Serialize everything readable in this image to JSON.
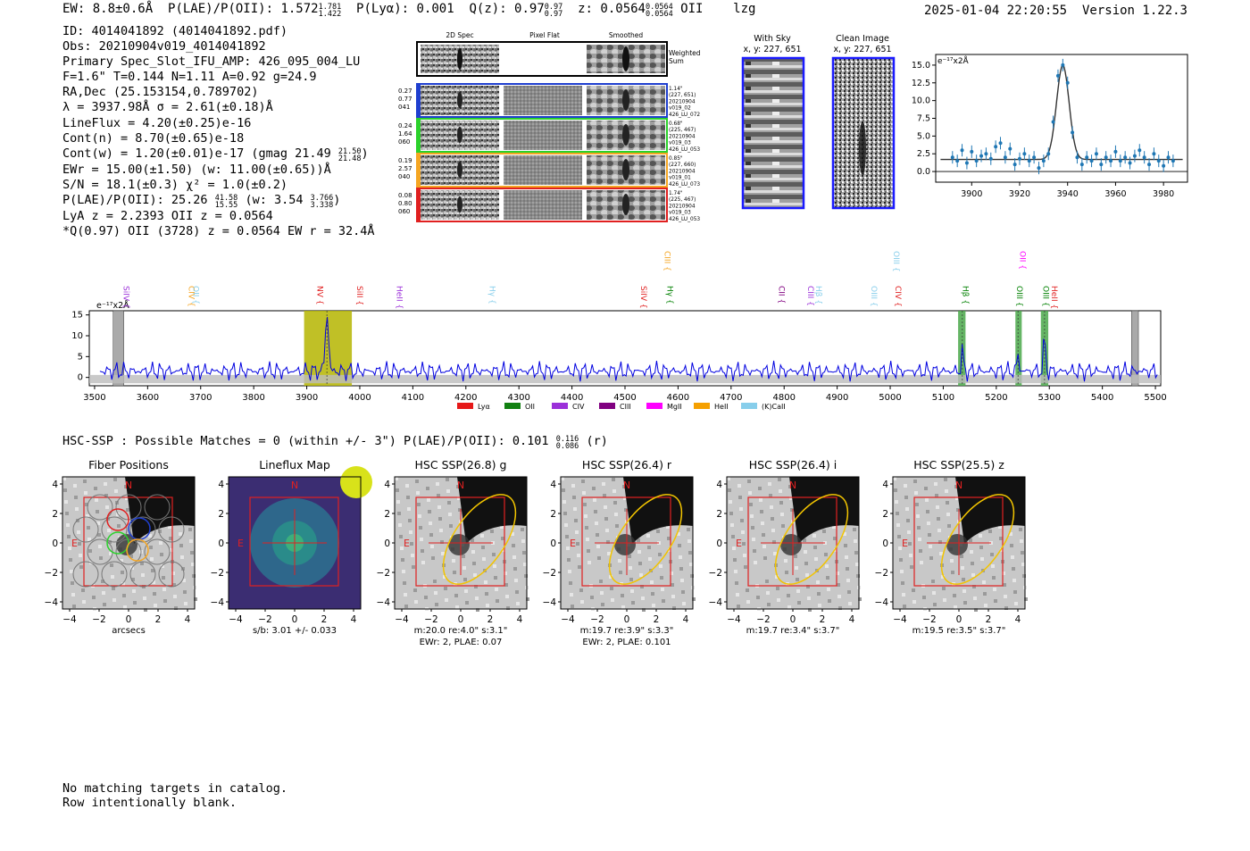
{
  "header": {
    "ew": "EW: 8.8±0.6Å",
    "plae_label": "P(LAE)/P(OII): 1.572",
    "plae_hi": "1.781",
    "plae_lo": "1.422",
    "plya": "P(Lyα): 0.001",
    "qz_label": "Q(z): 0.97",
    "qz_hi": "0.97",
    "qz_lo": "0.97",
    "z_label": "z: 0.0564",
    "z_hi": "0.0564",
    "z_lo": "0.0564",
    "z_line": "OII",
    "tag": "lzg",
    "timestamp": "2025-01-04 22:20:55",
    "version": "Version 1.22.3"
  },
  "info": {
    "id": "ID: 4014041892 (4014041892.pdf)",
    "obs": "Obs: 20210904v019_4014041892",
    "primary": "Primary Spec_Slot_IFU_AMP: 426_095_004_LU",
    "f_line": "F=1.6\"  T=0.144  N=1.11  A=0.92  g=24.9",
    "radec": "RA,Dec (25.153154,0.789702)",
    "lambda": "λ = 3937.98Å  σ = 2.61(±0.18)Å",
    "lineflux": "LineFlux = 4.20(±0.25)e-16",
    "contn": "Cont(n) = 8.70(±0.65)e-18",
    "contw": "Cont(w) = 1.20(±0.01)e-17 (gmag 21.49",
    "contw_hi": "21.50",
    "contw_lo": "21.48",
    "ewr": "EWr = 15.00(±1.50) (w: 11.00(±0.65))Å",
    "sn": "S/N = 18.1(±0.3)  χ² = 1.0(±0.2)",
    "plae2": "P(LAE)/P(OII): 25.26",
    "plae2_hi": "41.58",
    "plae2_lo": "15.55",
    "plae2_w": "(w: 3.54",
    "plae2_w_hi": "3.766",
    "plae2_w_lo": "3.338",
    "lya": "LyA z = 2.2393  OII z = 0.0564",
    "q": "*Q(0.97) OII (3728) z = 0.0564  EW r = 32.4Å"
  },
  "cutouts": {
    "col_2d": "2D Spec",
    "col_flat": "Pixel Flat",
    "col_smooth": "Smoothed",
    "weighted": "Weighted Sum",
    "rows": [
      {
        "color": "#1f3fcf",
        "left": [
          "0.27",
          "0.77",
          "041"
        ],
        "right": [
          "1.14\"",
          "(227, 651)",
          "20210904",
          "v019_02",
          "426_LU_072"
        ]
      },
      {
        "color": "#2bd12b",
        "left": [
          "0.24",
          "1.64",
          "060"
        ],
        "right": [
          "0.68\"",
          "(225, 467)",
          "20210904",
          "v019_03",
          "426_LU_053"
        ]
      },
      {
        "color": "#f5a623",
        "left": [
          "0.19",
          "2.57",
          "040"
        ],
        "right": [
          "0.85\"",
          "(227, 660)",
          "20210904",
          "v019_01",
          "426_LU_073"
        ]
      },
      {
        "color": "#e02020",
        "left": [
          "0.08",
          "0.80",
          "060"
        ],
        "right": [
          "1.74\"",
          "(225, 467)",
          "20210904",
          "v019_03",
          "426_LU_053"
        ]
      }
    ]
  },
  "sky": {
    "title": "With Sky",
    "coords": "x, y: 227, 651"
  },
  "clean": {
    "title": "Clean Image",
    "coords": "x, y: 227, 651"
  },
  "zoom_plot": {
    "ylabel": "e⁻¹⁷x2Å",
    "yticks": [
      "15.0",
      "12.5",
      "10.0",
      "7.5",
      "5.0",
      "2.5",
      "0.0"
    ],
    "xticks": [
      "3900",
      "3920",
      "3940",
      "3960",
      "3980"
    ]
  },
  "spectrum": {
    "ylabel": "e⁻¹⁷x2Å",
    "yticks": [
      "15",
      "10",
      "5",
      "0"
    ],
    "xticks": [
      "3500",
      "3600",
      "3700",
      "3800",
      "3900",
      "4000",
      "4100",
      "4200",
      "4300",
      "4400",
      "4500",
      "4600",
      "4700",
      "4800",
      "4900",
      "5000",
      "5100",
      "5200",
      "5300",
      "5400",
      "5500"
    ],
    "line_labels": [
      {
        "text": "SiIV",
        "color": "#9b30d9",
        "wl": 3555,
        "row": 1
      },
      {
        "text": "CIV",
        "color": "#f5a623",
        "wl": 3678,
        "row": 1
      },
      {
        "text": "OII",
        "color": "#87ceeb",
        "wl": 3686,
        "row": 1
      },
      {
        "text": "NV",
        "color": "#e02020",
        "wl": 3920,
        "row": 1
      },
      {
        "text": "SiII",
        "color": "#e02020",
        "wl": 3995,
        "row": 1
      },
      {
        "text": "HeII",
        "color": "#9b30d9",
        "wl": 4070,
        "row": 1
      },
      {
        "text": "Hγ",
        "color": "#87ceeb",
        "wl": 4245,
        "row": 1
      },
      {
        "text": "SiIV",
        "color": "#e02020",
        "wl": 4530,
        "row": 1
      },
      {
        "text": "CIII",
        "color": "#f5a623",
        "wl": 4575,
        "row": 0
      },
      {
        "text": "Hγ",
        "color": "#008000",
        "wl": 4580,
        "row": 1
      },
      {
        "text": "CII",
        "color": "#800080",
        "wl": 4790,
        "row": 1
      },
      {
        "text": "CIII",
        "color": "#9b30d9",
        "wl": 4845,
        "row": 1
      },
      {
        "text": "Hβ",
        "color": "#87ceeb",
        "wl": 4860,
        "row": 1
      },
      {
        "text": "OIII",
        "color": "#87ceeb",
        "wl": 4965,
        "row": 1
      },
      {
        "text": "OIII",
        "color": "#87ceeb",
        "wl": 5007,
        "row": 0
      },
      {
        "text": "CIV",
        "color": "#e02020",
        "wl": 5010,
        "row": 1
      },
      {
        "text": "Hβ",
        "color": "#008000",
        "wl": 5137,
        "row": 1
      },
      {
        "text": "OII",
        "color": "#ff00ff",
        "wl": 5245,
        "row": 0
      },
      {
        "text": "OIII",
        "color": "#008000",
        "wl": 5239,
        "row": 1
      },
      {
        "text": "OIII",
        "color": "#008000",
        "wl": 5289,
        "row": 1
      },
      {
        "text": "HeII",
        "color": "#e02020",
        "wl": 5305,
        "row": 1
      }
    ],
    "legend": [
      {
        "label": "Lyα",
        "color": "#e61919"
      },
      {
        "label": "OII",
        "color": "#118011"
      },
      {
        "label": "CIV",
        "color": "#9b30d9"
      },
      {
        "label": "CIII",
        "color": "#800080"
      },
      {
        "label": "MgII",
        "color": "#ff00ff"
      },
      {
        "label": "HeII",
        "color": "#f5a000"
      },
      {
        "label": "(K)CaII",
        "color": "#87ceeb"
      }
    ]
  },
  "hsc": {
    "line": "HSC-SSP : Possible Matches = 0 (within +/- 3\")  P(LAE)/P(OII): 0.101",
    "hi": "0.116",
    "lo": "0.086",
    "band": "(r)",
    "panels": [
      {
        "title": "Fiber Positions",
        "cap1": "arcsecs",
        "cap2": "",
        "type": "fiber"
      },
      {
        "title": "Lineflux Map",
        "cap1": "s/b: 3.01 +/- 0.033",
        "cap2": "",
        "type": "flux"
      },
      {
        "title": "HSC SSP(26.8) g",
        "cap1": "m:20.0  re:4.0\"  s:3.1\"",
        "cap2": "EWr: 2, PLAE: 0.07",
        "type": "hsc"
      },
      {
        "title": "HSC SSP(26.4) r",
        "cap1": "m:19.7  re:3.9\"  s:3.3\"",
        "cap2": "EWr: 2, PLAE: 0.101",
        "type": "hsc"
      },
      {
        "title": "HSC SSP(26.4) i",
        "cap1": "m:19.7  re:3.4\"  s:3.7\"",
        "cap2": "",
        "type": "hsc"
      },
      {
        "title": "HSC SSP(25.5) z",
        "cap1": "m:19.5  re:3.5\"  s:3.7\"",
        "cap2": "",
        "type": "hsc"
      }
    ],
    "axis_ticks": [
      "4",
      "2",
      "0",
      "−2",
      "−4"
    ],
    "xaxis_ticks": [
      "−4",
      "−2",
      "0",
      "2",
      "4"
    ],
    "north": "N",
    "east": "E"
  },
  "footer": {
    "line1": "No matching targets in catalog.",
    "line2": "Row intentionally blank."
  },
  "chart_data": [
    {
      "type": "scatter",
      "title": "",
      "xlabel": "",
      "ylabel": "e⁻¹⁷x2Å",
      "xlim": [
        3885,
        3990
      ],
      "ylim": [
        -1.5,
        16.5
      ],
      "points": [
        {
          "x": 3892,
          "y": 2.0
        },
        {
          "x": 3894,
          "y": 1.5
        },
        {
          "x": 3896,
          "y": 3.0
        },
        {
          "x": 3898,
          "y": 1.2
        },
        {
          "x": 3900,
          "y": 2.8
        },
        {
          "x": 3902,
          "y": 1.5
        },
        {
          "x": 3904,
          "y": 2.2
        },
        {
          "x": 3906,
          "y": 2.5
        },
        {
          "x": 3908,
          "y": 1.8
        },
        {
          "x": 3910,
          "y": 3.5
        },
        {
          "x": 3912,
          "y": 4.0
        },
        {
          "x": 3914,
          "y": 2.0
        },
        {
          "x": 3916,
          "y": 3.2
        },
        {
          "x": 3918,
          "y": 1.0
        },
        {
          "x": 3920,
          "y": 1.8
        },
        {
          "x": 3922,
          "y": 2.5
        },
        {
          "x": 3924,
          "y": 1.5
        },
        {
          "x": 3926,
          "y": 2.0
        },
        {
          "x": 3928,
          "y": 0.5
        },
        {
          "x": 3930,
          "y": 1.5
        },
        {
          "x": 3932,
          "y": 2.5
        },
        {
          "x": 3934,
          "y": 7.0
        },
        {
          "x": 3936,
          "y": 13.5
        },
        {
          "x": 3938,
          "y": 15.0
        },
        {
          "x": 3940,
          "y": 12.5
        },
        {
          "x": 3942,
          "y": 5.5
        },
        {
          "x": 3944,
          "y": 2.0
        },
        {
          "x": 3946,
          "y": 1.0
        },
        {
          "x": 3948,
          "y": 2.0
        },
        {
          "x": 3950,
          "y": 1.5
        },
        {
          "x": 3952,
          "y": 2.5
        },
        {
          "x": 3954,
          "y": 1.0
        },
        {
          "x": 3956,
          "y": 2.0
        },
        {
          "x": 3958,
          "y": 1.5
        },
        {
          "x": 3960,
          "y": 2.8
        },
        {
          "x": 3962,
          "y": 1.5
        },
        {
          "x": 3964,
          "y": 2.0
        },
        {
          "x": 3966,
          "y": 1.2
        },
        {
          "x": 3968,
          "y": 2.2
        },
        {
          "x": 3970,
          "y": 3.0
        },
        {
          "x": 3972,
          "y": 2.0
        },
        {
          "x": 3974,
          "y": 1.0
        },
        {
          "x": 3976,
          "y": 2.5
        },
        {
          "x": 3978,
          "y": 1.5
        },
        {
          "x": 3980,
          "y": 0.8
        },
        {
          "x": 3982,
          "y": 2.0
        },
        {
          "x": 3984,
          "y": 1.5
        }
      ],
      "fit": {
        "amplitude": 13.3,
        "center": 3938,
        "sigma": 2.61,
        "continuum": 1.7
      }
    },
    {
      "type": "line",
      "title": "",
      "xlabel": "",
      "ylabel": "e⁻¹⁷x2Å",
      "xlim": [
        3490,
        5510
      ],
      "ylim": [
        -2,
        16
      ],
      "highlight_bands": [
        {
          "range": [
            3895,
            3985
          ],
          "color": "#b5b500"
        },
        {
          "range": [
            5128,
            5142
          ],
          "color": "#4aa84a"
        },
        {
          "range": [
            5236,
            5248
          ],
          "color": "#4aa84a"
        },
        {
          "range": [
            5284,
            5298
          ],
          "color": "#4aa84a"
        }
      ],
      "masked_bands": [
        [
          3535,
          3555
        ],
        [
          5455,
          5468
        ]
      ],
      "features": [
        {
          "center": 3938,
          "amplitude": 14,
          "sigma": 3
        },
        {
          "center": 5136,
          "amplitude": 5,
          "sigma": 2
        },
        {
          "center": 5241,
          "amplitude": 4,
          "sigma": 2
        },
        {
          "center": 5291,
          "amplitude": 8,
          "sigma": 2
        }
      ],
      "continuum": 1.5
    }
  ]
}
